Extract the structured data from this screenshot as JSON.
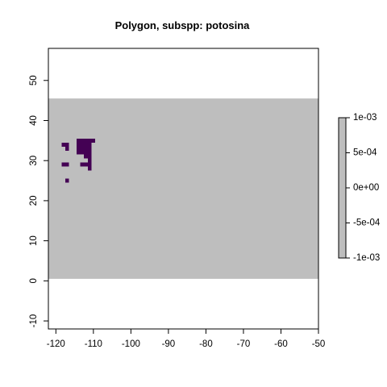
{
  "chart_data": {
    "type": "heatmap",
    "title": "Polygon, subspp: potosina",
    "xlabel": "",
    "ylabel": "",
    "xlim": [
      -122,
      -50
    ],
    "ylim": [
      -12,
      58
    ],
    "x_ticks": [
      -120,
      -110,
      -100,
      -90,
      -80,
      -70,
      -60,
      -50
    ],
    "y_ticks": [
      -10,
      0,
      10,
      20,
      30,
      40,
      50
    ],
    "grid": false,
    "background_band": {
      "x": [
        -122,
        -50
      ],
      "y": [
        0.5,
        45.5
      ],
      "color": "#bebebe"
    },
    "cell_color": "#440154",
    "cells": [
      {
        "x": [
          -118.5,
          -116.5
        ],
        "y": [
          33.5,
          34.5
        ]
      },
      {
        "x": [
          -117.5,
          -116.5
        ],
        "y": [
          32.5,
          33.5
        ]
      },
      {
        "x": [
          -114.5,
          -109.5
        ],
        "y": [
          34.5,
          35.5
        ]
      },
      {
        "x": [
          -114.5,
          -110.5
        ],
        "y": [
          33.5,
          34.5
        ]
      },
      {
        "x": [
          -114.5,
          -110.5
        ],
        "y": [
          32.5,
          33.5
        ]
      },
      {
        "x": [
          -114.5,
          -112.5
        ],
        "y": [
          31.5,
          32.5
        ]
      },
      {
        "x": [
          -112.5,
          -110.5
        ],
        "y": [
          31.5,
          32.5
        ]
      },
      {
        "x": [
          -112.5,
          -110.5
        ],
        "y": [
          30.5,
          31.5
        ]
      },
      {
        "x": [
          -111.5,
          -110.5
        ],
        "y": [
          29.5,
          30.5
        ]
      },
      {
        "x": [
          -118.5,
          -116.5
        ],
        "y": [
          28.5,
          29.5
        ]
      },
      {
        "x": [
          -113.5,
          -110.5
        ],
        "y": [
          28.5,
          29.5
        ]
      },
      {
        "x": [
          -111.5,
          -110.5
        ],
        "y": [
          27.5,
          28.5
        ]
      },
      {
        "x": [
          -117.5,
          -116.5
        ],
        "y": [
          24.5,
          25.5
        ]
      }
    ],
    "legend": {
      "placement": "right",
      "color": "#bebebe",
      "range": [
        -0.001,
        0.001
      ],
      "ticks": [
        {
          "value": 0.001,
          "label": "1e-03"
        },
        {
          "value": 0.0005,
          "label": "5e-04"
        },
        {
          "value": 0,
          "label": "0e+00"
        },
        {
          "value": -0.0005,
          "label": "-5e-04"
        },
        {
          "value": -0.001,
          "label": "-1e-03"
        }
      ]
    }
  }
}
